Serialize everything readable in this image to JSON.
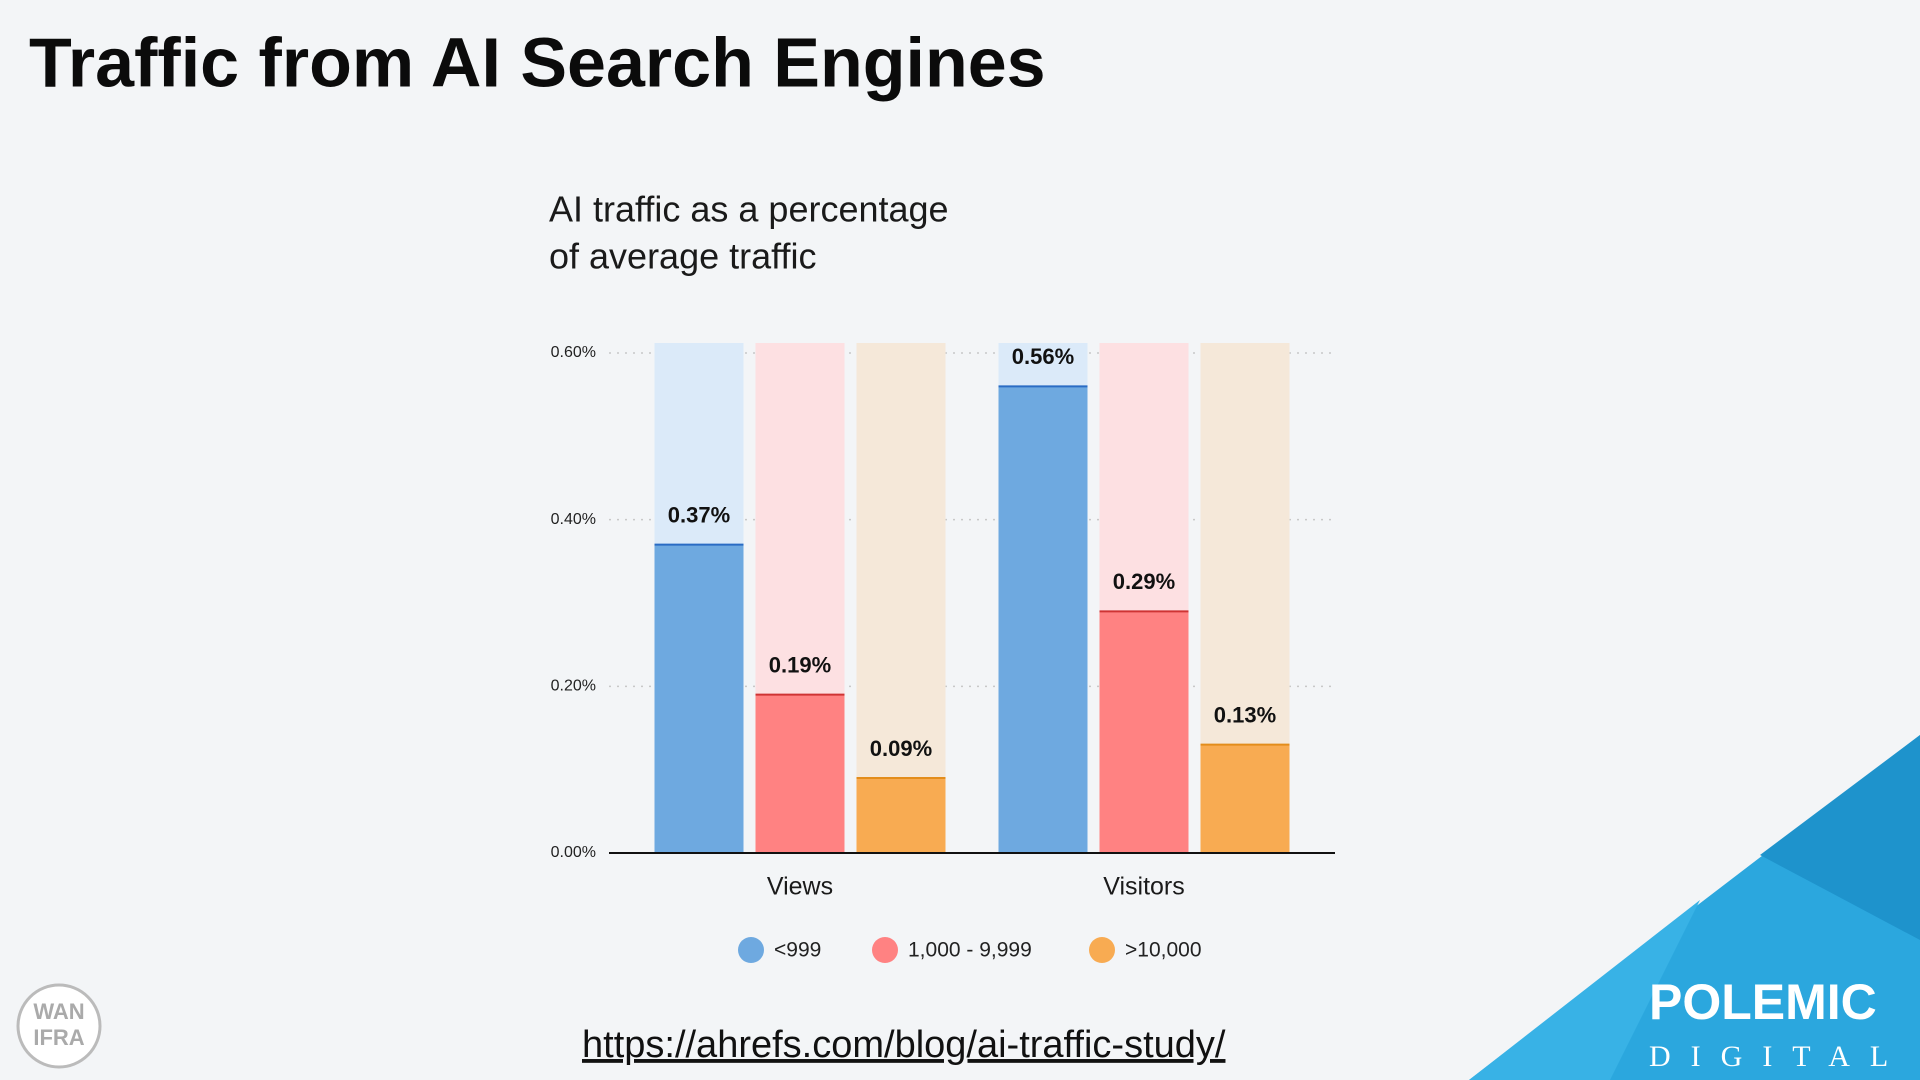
{
  "header": {
    "title": "Traffic from AI Search Engines"
  },
  "chart_data": {
    "type": "bar",
    "subtitle": [
      "AI traffic as a percentage",
      "of average traffic"
    ],
    "categories": [
      "Views",
      "Visitors"
    ],
    "series": [
      {
        "name": "<999",
        "color": "#6ea9e0",
        "values": [
          0.37,
          0.56
        ],
        "value_labels": [
          "0.37%",
          "0.56%"
        ]
      },
      {
        "name": "1,000 - 9,999",
        "color": "#ff8282",
        "values": [
          0.19,
          0.29
        ],
        "value_labels": [
          "0.19%",
          "0.29%"
        ]
      },
      {
        "name": ">10,000",
        "color": "#f8ab52",
        "values": [
          0.09,
          0.13
        ],
        "value_labels": [
          "0.09%",
          "0.13%"
        ]
      }
    ],
    "ylim": [
      0,
      0.6
    ],
    "yticks": [
      {
        "value": 0,
        "label": "0.00%"
      },
      {
        "value": 0.2,
        "label": "0.20%"
      },
      {
        "value": 0.4,
        "label": "0.40%"
      },
      {
        "value": 0.6,
        "label": "0.60%"
      }
    ],
    "grid": true
  },
  "source": {
    "url": "https://ahrefs.com/blog/ai-traffic-study/"
  },
  "logos": {
    "wan": "WAN",
    "ifra": "IFRA",
    "brand": "POLEMIC",
    "brand_sub": "DIGITAL"
  }
}
